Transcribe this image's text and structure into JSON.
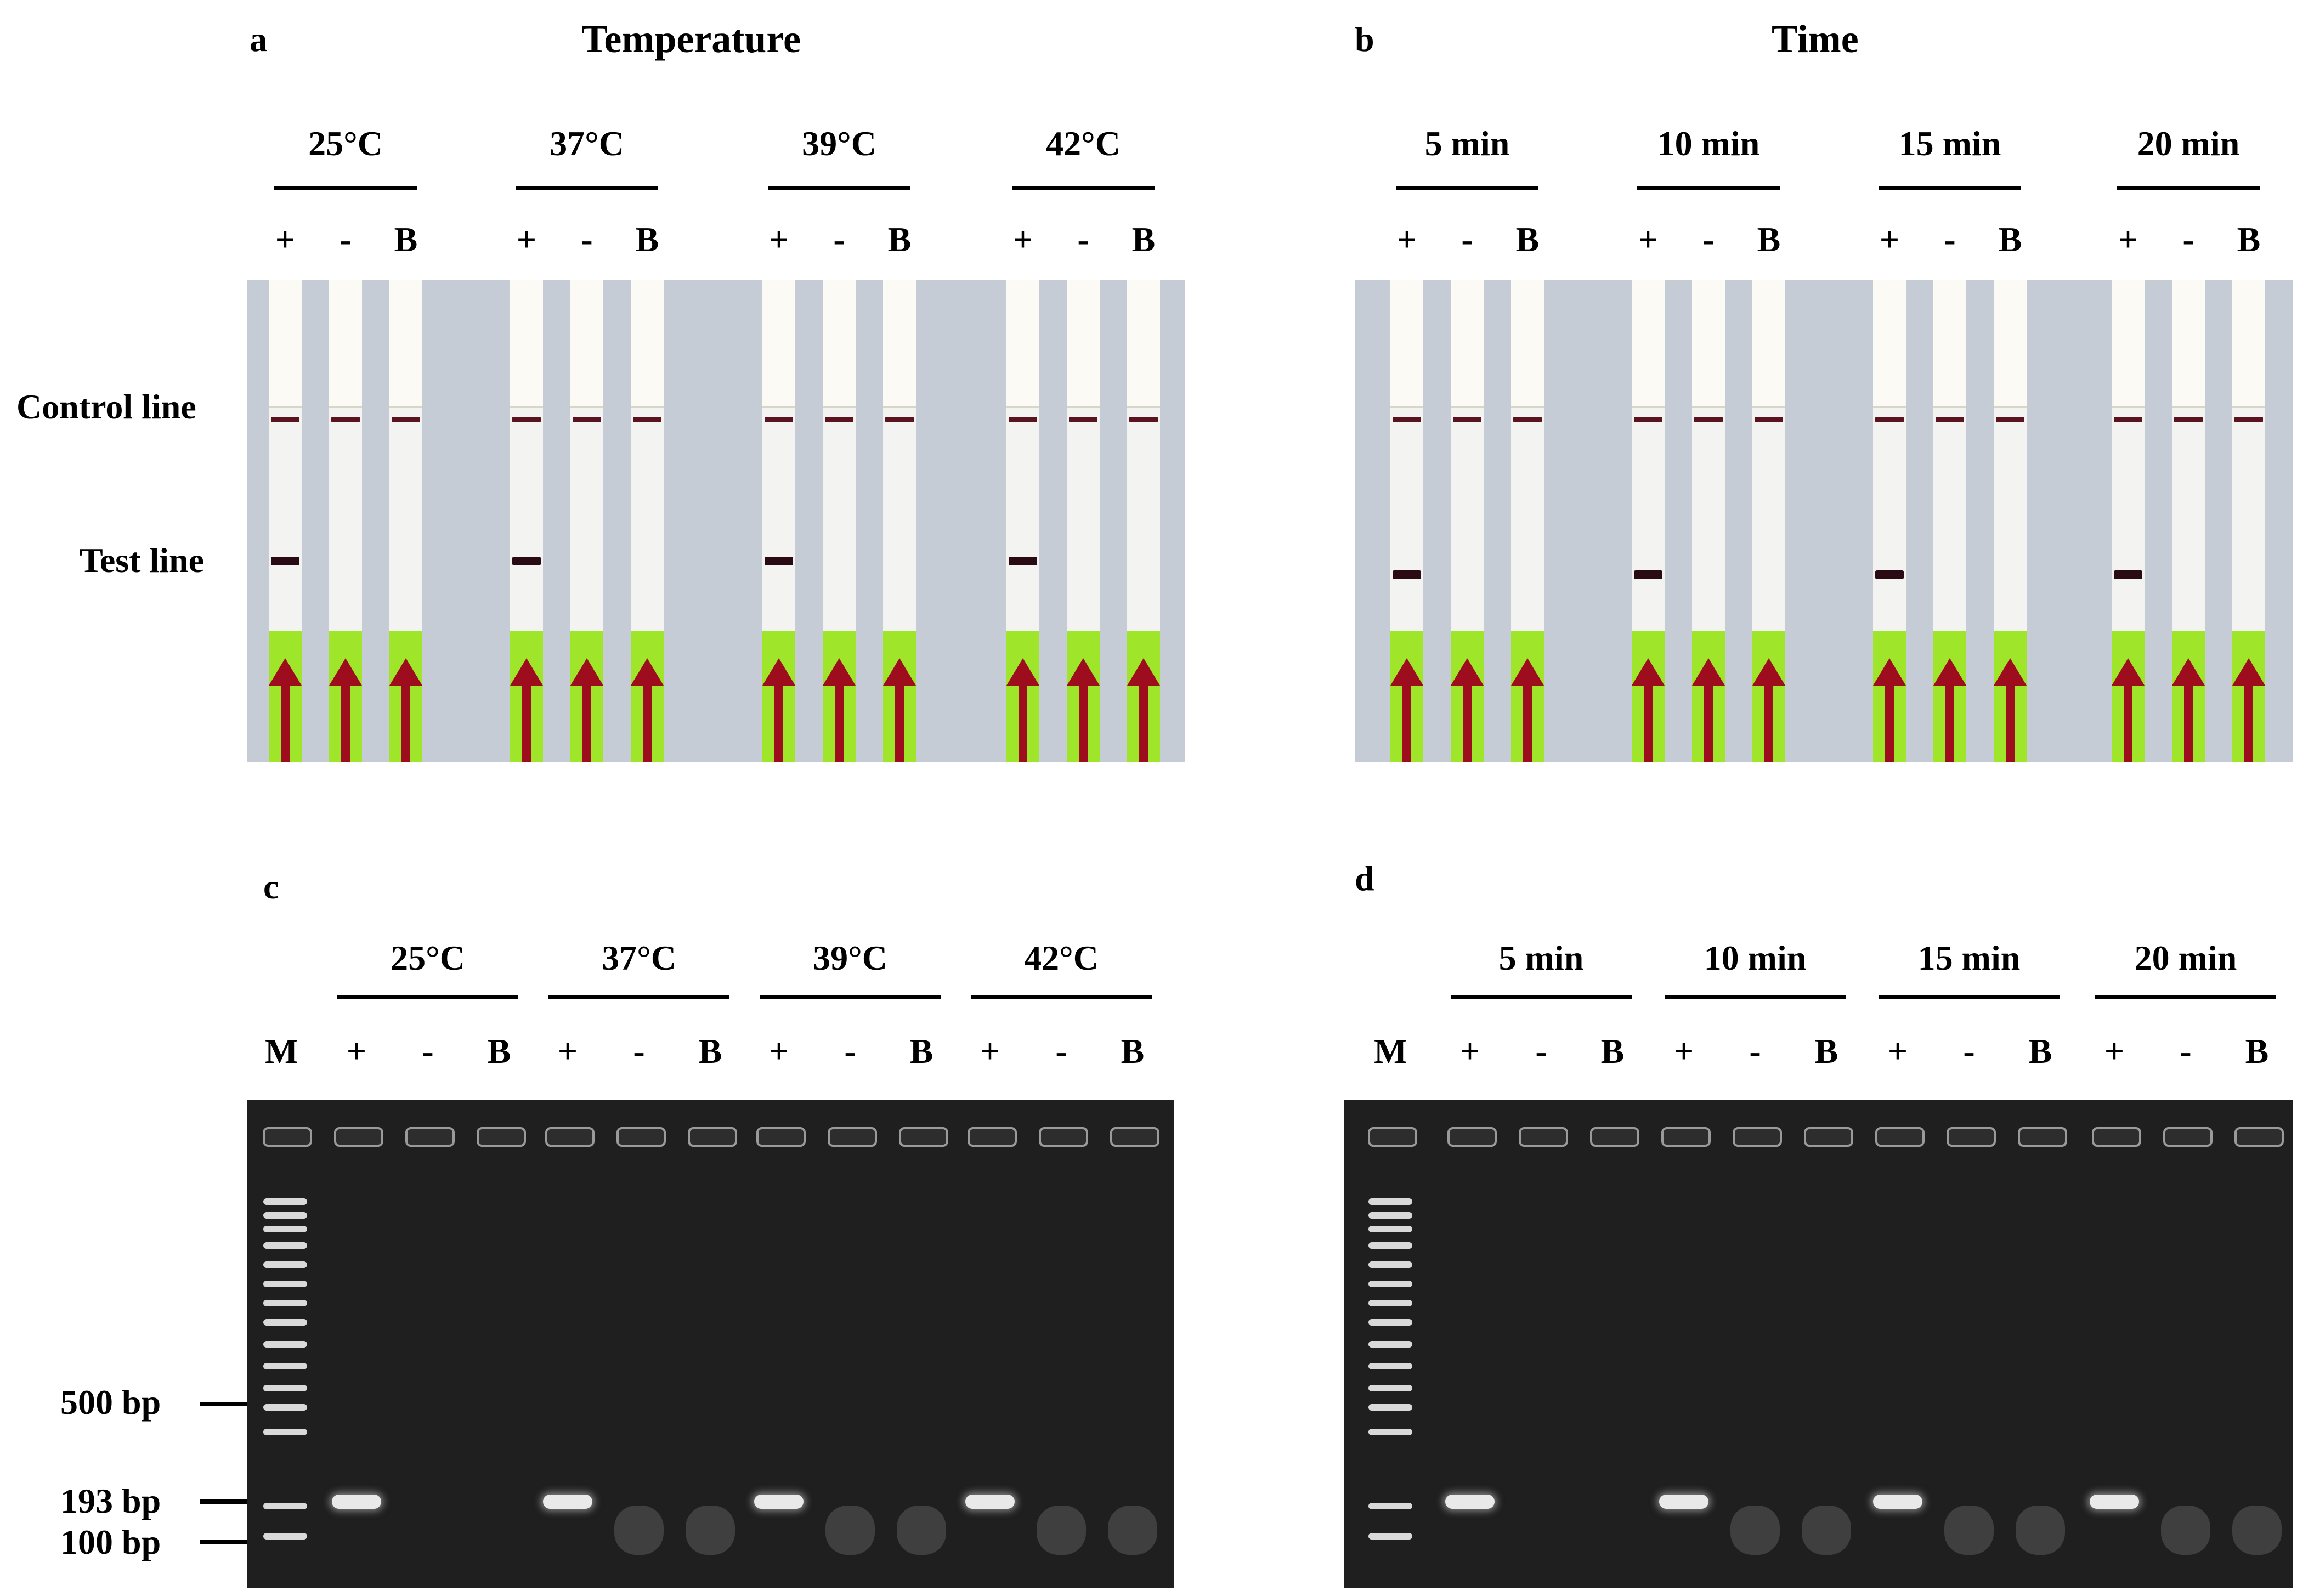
{
  "panels": {
    "a": {
      "letter": "a",
      "title": "Temperature"
    },
    "b": {
      "letter": "b",
      "title": "Time"
    },
    "c": {
      "letter": "c"
    },
    "d": {
      "letter": "d"
    }
  },
  "temperatures": [
    "25°C",
    "37°C",
    "39°C",
    "42°C"
  ],
  "times": [
    "5 min",
    "10 min",
    "15 min",
    "20 min"
  ],
  "lane_signs": [
    "+",
    "-",
    "B"
  ],
  "marker_label": "M",
  "strip_labels": {
    "control": "Control line",
    "test": "Test line"
  },
  "bp_labels": {
    "bp500": "500 bp",
    "bp193": "193 bp",
    "bp100": "100 bp"
  },
  "colors": {
    "pad": "#9fe62a",
    "arrow": "#9e0d1e",
    "strip_background": "#c5ccd6",
    "gel": "#1f1f1f"
  }
}
